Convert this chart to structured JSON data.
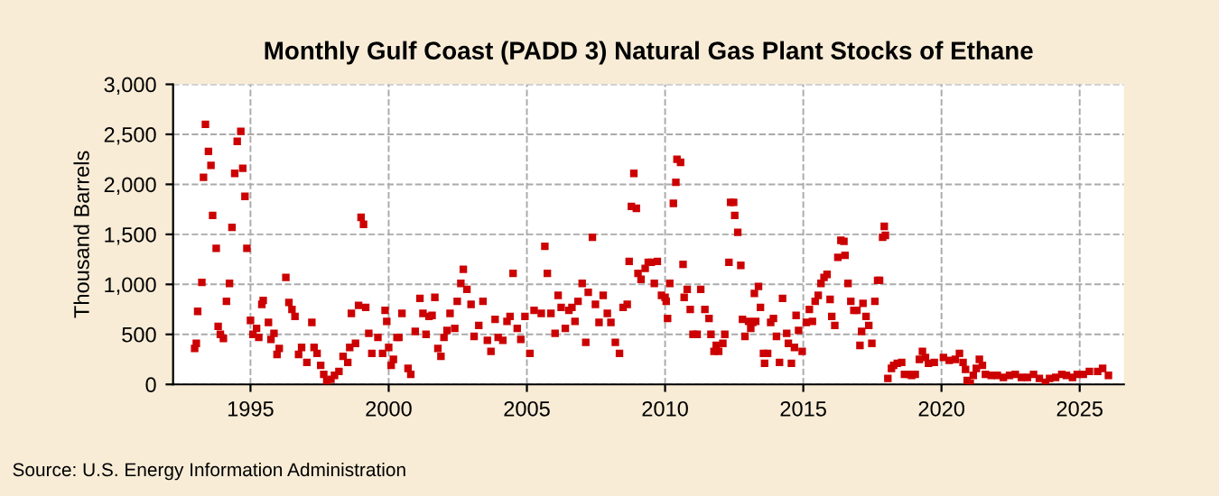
{
  "chart_data": {
    "type": "scatter",
    "title": "Monthly Gulf Coast (PADD 3) Natural Gas Plant Stocks of Ethane",
    "ylabel": "Thousand Barrels",
    "annotations": [
      "Source: U.S. Energy Information Administration"
    ],
    "x": [
      1992.98,
      1993.04,
      1993.09,
      1993.24,
      1993.3,
      1993.37,
      1993.48,
      1993.57,
      1993.63,
      1993.76,
      1993.83,
      1993.91,
      1994.02,
      1994.13,
      1994.24,
      1994.33,
      1994.43,
      1994.52,
      1994.65,
      1994.72,
      1994.8,
      1994.87,
      1995.0,
      1995.09,
      1995.22,
      1995.3,
      1995.41,
      1995.46,
      1995.65,
      1995.74,
      1995.85,
      1995.96,
      1996.04,
      1996.28,
      1996.39,
      1996.5,
      1996.61,
      1996.74,
      1996.85,
      1997.04,
      1997.22,
      1997.3,
      1997.41,
      1997.54,
      1997.65,
      1997.76,
      1997.91,
      1998.04,
      1998.2,
      1998.35,
      1998.52,
      1998.59,
      1998.65,
      1998.8,
      1998.91,
      1999.0,
      1999.09,
      1999.17,
      1999.28,
      1999.39,
      1999.61,
      1999.78,
      1999.87,
      1999.93,
      2000.0,
      2000.09,
      2000.17,
      2000.3,
      2000.37,
      2000.48,
      2000.7,
      2000.8,
      2000.96,
      2001.13,
      2001.24,
      2001.35,
      2001.46,
      2001.57,
      2001.67,
      2001.78,
      2001.89,
      2002.0,
      2002.11,
      2002.22,
      2002.39,
      2002.48,
      2002.61,
      2002.7,
      2002.83,
      2002.98,
      2003.09,
      2003.26,
      2003.41,
      2003.57,
      2003.7,
      2003.85,
      2003.96,
      2004.13,
      2004.28,
      2004.39,
      2004.5,
      2004.65,
      2004.78,
      2004.93,
      2005.11,
      2005.26,
      2005.52,
      2005.65,
      2005.74,
      2005.87,
      2006.02,
      2006.13,
      2006.24,
      2006.39,
      2006.52,
      2006.63,
      2006.74,
      2006.85,
      2007.0,
      2007.13,
      2007.22,
      2007.37,
      2007.48,
      2007.61,
      2007.76,
      2007.91,
      2008.04,
      2008.2,
      2008.35,
      2008.48,
      2008.63,
      2008.7,
      2008.78,
      2008.87,
      2008.96,
      2009.02,
      2009.13,
      2009.28,
      2009.39,
      2009.5,
      2009.61,
      2009.72,
      2009.87,
      2010.0,
      2010.04,
      2010.09,
      2010.17,
      2010.3,
      2010.39,
      2010.43,
      2010.56,
      2010.65,
      2010.69,
      2010.8,
      2010.91,
      2011.01,
      2011.16,
      2011.29,
      2011.44,
      2011.59,
      2011.66,
      2011.77,
      2011.85,
      2011.94,
      2012.09,
      2012.16,
      2012.31,
      2012.37,
      2012.48,
      2012.52,
      2012.63,
      2012.74,
      2012.8,
      2012.89,
      2013.02,
      2013.1,
      2013.17,
      2013.23,
      2013.28,
      2013.38,
      2013.45,
      2013.56,
      2013.6,
      2013.71,
      2013.82,
      2013.92,
      2014.03,
      2014.14,
      2014.25,
      2014.4,
      2014.46,
      2014.57,
      2014.68,
      2014.74,
      2014.83,
      2014.96,
      2015.11,
      2015.22,
      2015.33,
      2015.43,
      2015.54,
      2015.64,
      2015.75,
      2015.86,
      2015.97,
      2016.03,
      2016.14,
      2016.25,
      2016.36,
      2016.47,
      2016.51,
      2016.62,
      2016.72,
      2016.83,
      2016.94,
      2017.05,
      2017.11,
      2017.16,
      2017.27,
      2017.37,
      2017.48,
      2017.59,
      2017.69,
      2017.76,
      2017.87,
      2017.93,
      2017.97,
      2018.06,
      2018.19,
      2018.27,
      2018.4,
      2018.56,
      2018.66,
      2018.84,
      2018.92,
      2019.05,
      2019.2,
      2019.31,
      2019.42,
      2019.53,
      2019.74,
      2020.07,
      2020.28,
      2020.5,
      2020.65,
      2020.78,
      2020.87,
      2020.93,
      2021.04,
      2021.15,
      2021.26,
      2021.37,
      2021.48,
      2021.59,
      2021.8,
      2022.02,
      2022.24,
      2022.46,
      2022.67,
      2022.89,
      2023.11,
      2023.33,
      2023.54,
      2023.76,
      2023.91,
      2024.13,
      2024.35,
      2024.52,
      2024.74,
      2024.91,
      2025.13,
      2025.35,
      2025.65,
      2025.83,
      2026.04
    ],
    "series": [
      {
        "color": "#cc0000",
        "values": [
          360,
          410,
          730,
          1020,
          2070,
          2600,
          2330,
          2190,
          1690,
          1360,
          580,
          500,
          460,
          830,
          1010,
          1570,
          2110,
          2430,
          2530,
          2160,
          1880,
          1360,
          640,
          500,
          560,
          470,
          800,
          840,
          620,
          450,
          510,
          300,
          360,
          1070,
          820,
          750,
          680,
          300,
          370,
          220,
          620,
          370,
          310,
          190,
          100,
          30,
          50,
          90,
          130,
          280,
          220,
          370,
          710,
          410,
          790,
          1670,
          1600,
          770,
          510,
          310,
          470,
          310,
          740,
          630,
          370,
          190,
          250,
          470,
          470,
          710,
          160,
          100,
          530,
          860,
          710,
          500,
          680,
          690,
          870,
          360,
          280,
          470,
          540,
          710,
          560,
          830,
          1010,
          1150,
          950,
          800,
          480,
          590,
          830,
          440,
          330,
          650,
          470,
          440,
          630,
          680,
          1110,
          560,
          450,
          680,
          310,
          740,
          710,
          1380,
          1110,
          710,
          510,
          890,
          770,
          560,
          740,
          770,
          630,
          830,
          1010,
          420,
          920,
          1470,
          800,
          620,
          890,
          710,
          620,
          420,
          310,
          770,
          800,
          1230,
          1780,
          2110,
          1760,
          1110,
          1050,
          1160,
          1220,
          1220,
          1010,
          1230,
          890,
          870,
          830,
          660,
          1010,
          1810,
          2020,
          2250,
          2220,
          1200,
          870,
          950,
          750,
          500,
          500,
          950,
          750,
          660,
          500,
          330,
          390,
          330,
          410,
          500,
          1220,
          1820,
          1820,
          1690,
          1520,
          1190,
          650,
          480,
          630,
          560,
          620,
          910,
          630,
          980,
          770,
          310,
          210,
          310,
          620,
          660,
          480,
          220,
          860,
          510,
          410,
          210,
          370,
          690,
          540,
          330,
          620,
          750,
          630,
          830,
          890,
          1010,
          1070,
          1100,
          850,
          680,
          590,
          1270,
          1440,
          1430,
          1290,
          1010,
          830,
          740,
          740,
          390,
          530,
          810,
          680,
          590,
          410,
          830,
          1040,
          1040,
          1470,
          1580,
          1490,
          60,
          160,
          190,
          210,
          220,
          100,
          100,
          90,
          100,
          250,
          330,
          270,
          210,
          220,
          270,
          240,
          250,
          310,
          220,
          150,
          40,
          10,
          90,
          160,
          250,
          190,
          100,
          90,
          90,
          70,
          90,
          100,
          70,
          70,
          100,
          60,
          20,
          60,
          70,
          100,
          90,
          70,
          100,
          100,
          130,
          130,
          160,
          90
        ]
      }
    ],
    "xlim": [
      1992.2,
      2026.6
    ],
    "ylim": [
      0,
      3000
    ],
    "xticks": [
      1995,
      2000,
      2005,
      2010,
      2015,
      2020,
      2025
    ],
    "yticks": [
      {
        "value": 0,
        "label": "0"
      },
      {
        "value": 500,
        "label": "500"
      },
      {
        "value": 1000,
        "label": "1,000"
      },
      {
        "value": 1500,
        "label": "1,500"
      },
      {
        "value": 2000,
        "label": "2,000"
      },
      {
        "value": 2500,
        "label": "2,500"
      },
      {
        "value": 3000,
        "label": "3,000"
      }
    ],
    "grid": true,
    "marker": "square",
    "legend": false
  }
}
